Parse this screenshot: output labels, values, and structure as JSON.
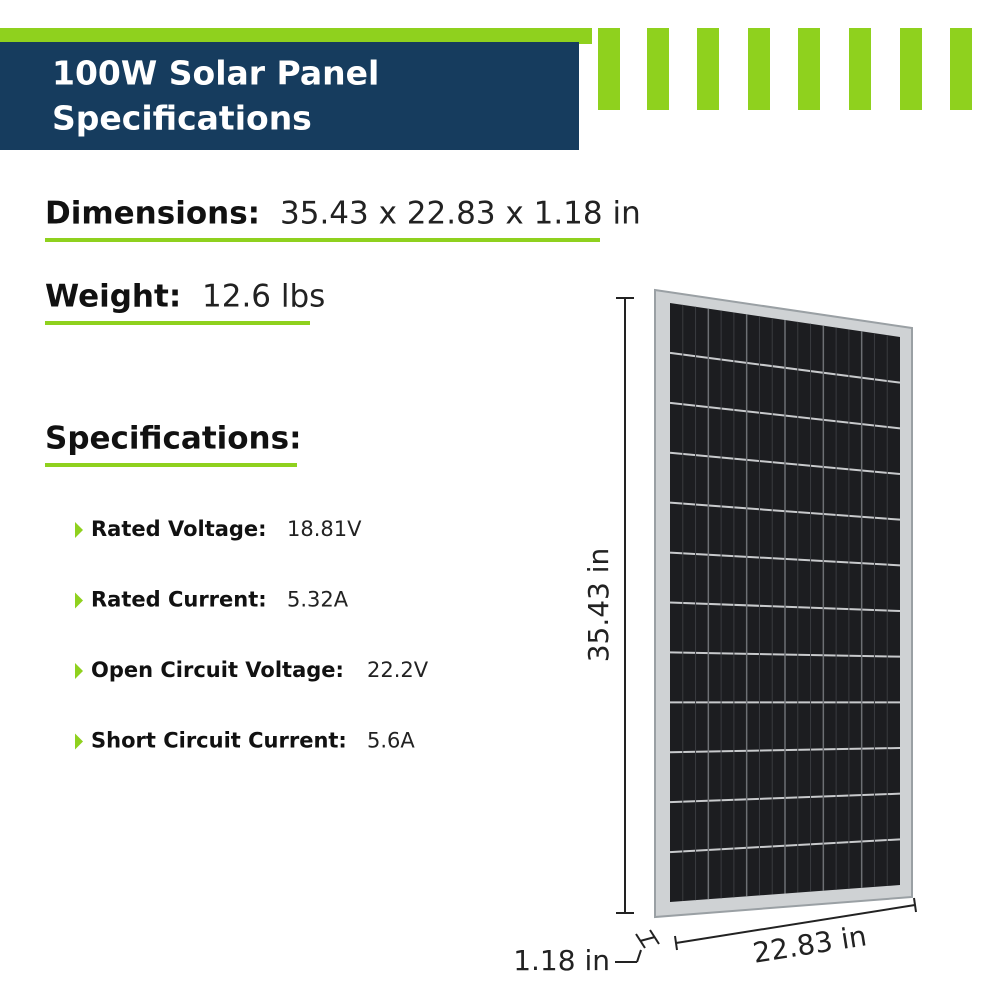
{
  "header": {
    "title_lines": [
      "100W Solar Panel",
      "Specifications"
    ]
  },
  "dimensions": {
    "label": "Dimensions:",
    "value": "35.43 x 22.83 x 1.18 in"
  },
  "weight": {
    "label": "Weight:",
    "value": "12.6 lbs"
  },
  "specifications": {
    "heading": "Specifications:",
    "items": [
      {
        "label": "Rated Voltage:",
        "value": "18.81V"
      },
      {
        "label": "Rated Current:",
        "value": "5.32A"
      },
      {
        "label": "Open Circuit Voltage:",
        "value": "22.2V"
      },
      {
        "label": "Short Circuit Current:",
        "value": "5.6A"
      }
    ]
  },
  "panel_labels": {
    "height": "35.43 in",
    "width": "22.83 in",
    "depth": "1.18 in"
  }
}
